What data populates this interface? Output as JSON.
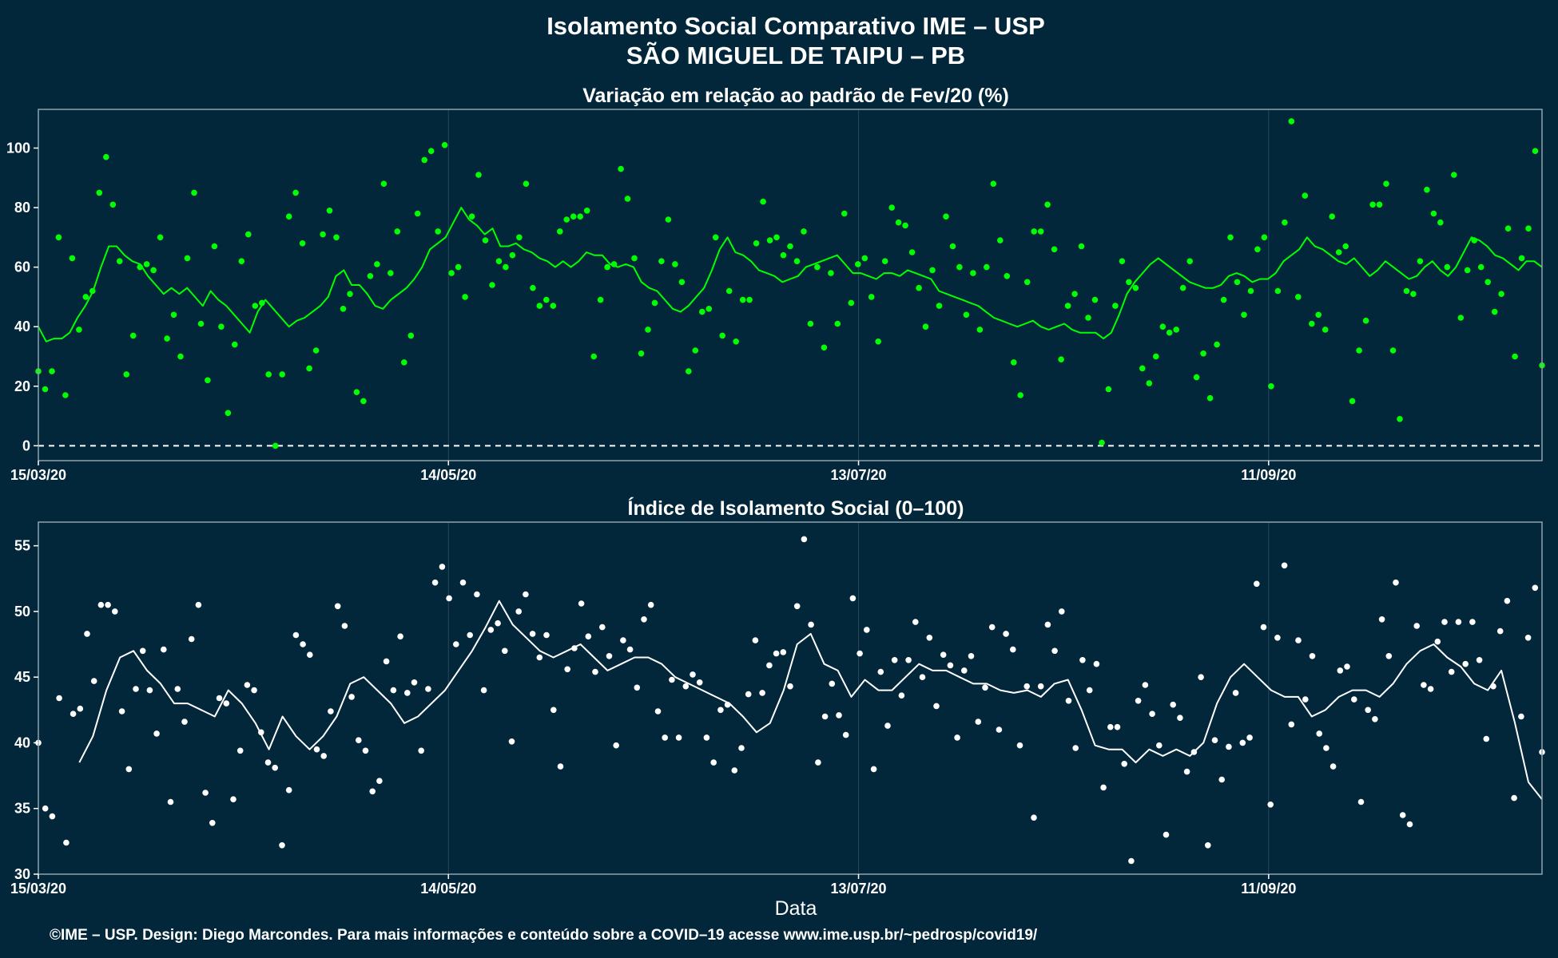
{
  "header": {
    "title": "Isolamento Social Comparativo IME – USP",
    "subtitle": "SÃO MIGUEL DE TAIPU – PB"
  },
  "x_axis": {
    "label": "Data",
    "start": "2020-03-15",
    "end": "2020-10-21",
    "tick_dates": [
      "2020-03-15",
      "2020-05-14",
      "2020-07-13",
      "2020-09-11"
    ],
    "tick_labels": [
      "15/03/20",
      "14/05/20",
      "13/07/20",
      "11/09/20"
    ]
  },
  "footer": {
    "credit": "©IME – USP. Design: Diego Marcondes. Para mais informações e conteúdo sobre a COVID–19 acesse www.ime.usp.br/~pedrosp/covid19/"
  },
  "colors": {
    "background": "#02263a",
    "variation_series": "#00ff00",
    "index_series": "#ffffff",
    "panel_border": "#8fa3ad",
    "grid": "#29465a"
  },
  "chart_data": [
    {
      "type": "scatter",
      "title": "Variação em relação ao padrão de Fev/20 (%)",
      "xlabel": "",
      "ylabel": "",
      "ylim": [
        -5,
        113
      ],
      "yticks": [
        0,
        20,
        40,
        60,
        80,
        100
      ],
      "reference_line": {
        "y": 0,
        "style": "dashed"
      },
      "grid": true,
      "series": [
        {
          "kind": "points",
          "values": [
            25,
            19,
            25,
            70,
            17,
            63,
            39,
            50,
            52,
            85,
            97,
            81,
            62,
            24,
            37,
            60,
            61,
            59,
            70,
            36,
            44,
            30,
            63,
            85,
            41,
            22,
            67,
            40,
            11,
            34,
            62,
            71,
            47,
            48,
            24,
            0,
            24,
            77,
            85,
            68,
            26,
            32,
            71,
            79,
            70,
            46,
            51,
            18,
            15,
            57,
            61,
            88,
            58,
            72,
            28,
            37,
            78,
            96,
            99,
            72,
            101,
            58,
            60,
            50,
            77,
            91,
            69,
            54,
            62,
            60,
            64,
            70,
            88,
            53,
            47,
            49,
            47,
            72,
            76,
            77,
            77,
            79,
            30,
            49,
            60,
            61,
            93,
            83,
            63,
            31,
            39,
            48,
            62,
            76,
            61,
            55,
            25,
            32,
            45,
            46,
            70,
            37,
            52,
            35,
            49,
            49,
            68,
            82,
            69,
            70,
            64,
            67,
            62,
            72,
            41,
            60,
            33,
            58,
            41,
            78,
            48,
            61,
            63,
            50,
            35,
            62,
            80,
            75,
            74,
            65,
            53,
            40,
            59,
            47,
            77,
            67,
            60,
            44,
            58,
            39,
            60,
            88,
            69,
            57,
            28,
            17,
            55,
            72,
            72,
            81,
            66,
            29,
            47,
            51,
            67,
            43,
            49,
            1,
            19,
            47,
            62,
            55,
            53,
            26,
            21,
            30,
            40,
            38,
            39,
            53,
            62,
            23,
            31,
            16,
            34,
            49,
            70,
            55,
            44,
            52,
            66,
            70,
            20,
            52,
            75,
            109,
            50,
            84,
            41,
            44,
            39,
            77,
            65,
            67,
            15,
            32,
            42,
            81,
            81,
            88,
            32,
            9,
            52,
            51,
            62,
            86,
            78,
            75,
            60,
            91,
            43,
            59,
            69,
            60,
            55,
            45,
            51,
            73,
            30,
            63,
            73,
            99,
            27
          ]
        },
        {
          "kind": "line",
          "name": "",
          "values": [
            40,
            35,
            36,
            36,
            38,
            43,
            47,
            52,
            60,
            67,
            67,
            64,
            62,
            61,
            57,
            54,
            51,
            53,
            51,
            53,
            50,
            47,
            52,
            49,
            47,
            44,
            41,
            38,
            45,
            49,
            46,
            43,
            40,
            42,
            43,
            45,
            47,
            50,
            57,
            59,
            54,
            54,
            51,
            47,
            46,
            49,
            51,
            53,
            56,
            60,
            66,
            68,
            70,
            75,
            80,
            76,
            74,
            71,
            73,
            67,
            67,
            68,
            66,
            65,
            63,
            62,
            60,
            62,
            60,
            62,
            65,
            64,
            64,
            61,
            60,
            61,
            60,
            55,
            53,
            52,
            49,
            46,
            45,
            47,
            50,
            53,
            59,
            66,
            70,
            65,
            64,
            62,
            59,
            58,
            57,
            55,
            56,
            57,
            60,
            61,
            62,
            63,
            64,
            61,
            58,
            58,
            57,
            56,
            58,
            58,
            57,
            59,
            58,
            57,
            56,
            52,
            51,
            50,
            49,
            48,
            47,
            45,
            43,
            42,
            41,
            40,
            41,
            42,
            40,
            39,
            40,
            41,
            39,
            38,
            38,
            38,
            36,
            38,
            44,
            51,
            55,
            58,
            61,
            63,
            61,
            59,
            57,
            55,
            54,
            53,
            53,
            54,
            57,
            58,
            57,
            55,
            56,
            56,
            58,
            62,
            64,
            66,
            70,
            67,
            66,
            64,
            62,
            61,
            63,
            60,
            57,
            59,
            62,
            60,
            58,
            56,
            57,
            60,
            62,
            59,
            57,
            60,
            65,
            70,
            69,
            67,
            64,
            63,
            61,
            59,
            62,
            62,
            60
          ]
        }
      ]
    },
    {
      "type": "scatter",
      "title": "Índice de Isolamento Social (0–100)",
      "xlabel": "Data",
      "ylabel": "",
      "ylim": [
        30,
        56.8
      ],
      "yticks": [
        30,
        35,
        40,
        45,
        50,
        55
      ],
      "grid": true,
      "series": [
        {
          "kind": "points",
          "values": [
            40,
            35,
            34.4,
            43.4,
            32.4,
            42.2,
            42.6,
            48.3,
            44.7,
            50.5,
            50.5,
            50,
            42.4,
            38,
            44.1,
            47,
            44,
            40.7,
            47.1,
            35.5,
            44.1,
            41.6,
            47.9,
            50.5,
            36.2,
            33.9,
            43.4,
            43,
            35.7,
            39.4,
            44.4,
            44,
            40.8,
            38.5,
            38.1,
            32.2,
            36.4,
            48.2,
            47.5,
            46.7,
            39.5,
            39,
            42.4,
            50.4,
            48.9,
            43.5,
            40.2,
            39.4,
            36.3,
            37.1,
            46.2,
            44,
            48.1,
            43.8,
            44.6,
            39.4,
            44.1,
            52.2,
            53.4,
            51,
            47.5,
            52.2,
            48.2,
            51.3,
            44,
            48.6,
            49.1,
            47,
            40.1,
            50,
            51.3,
            48.3,
            46.5,
            48.2,
            42.5,
            38.2,
            45.6,
            47.2,
            50.6,
            48.1,
            45.4,
            48.8,
            46.6,
            39.8,
            47.8,
            47.1,
            44.2,
            49.4,
            50.5,
            42.4,
            40.4,
            44.8,
            40.4,
            44.3,
            45.2,
            44.6,
            40.4,
            38.5,
            42.5,
            42.9,
            37.9,
            39.6,
            43.7,
            47.8,
            43.8,
            45.9,
            46.8,
            46.9,
            44.3,
            50.4,
            55.5,
            49,
            38.5,
            42,
            44.5,
            42.1,
            40.6,
            51,
            46.8,
            48.6,
            38,
            45.4,
            41.3,
            46.3,
            43.6,
            46.3,
            49.2,
            45,
            48,
            42.8,
            46.7,
            45.9,
            40.4,
            45.5,
            46.6,
            41.6,
            44.2,
            48.8,
            41,
            48.3,
            47.1,
            39.8,
            44.3,
            34.3,
            44.3,
            49,
            47,
            50,
            43.2,
            39.6,
            46.3,
            44,
            46,
            36.6,
            41.2,
            41.2,
            38.4,
            31,
            43.2,
            44.4,
            42.2,
            39.8,
            33,
            42.9,
            41.9,
            37.8,
            39.3,
            45,
            32.2,
            40.2,
            37.2,
            39.7,
            43.8,
            40,
            40.4,
            52.1,
            48.8,
            35.3,
            48,
            53.5,
            41.4,
            47.8,
            43.3,
            46.6,
            40.7,
            39.6,
            38.2,
            45.5,
            45.8,
            43.3,
            35.5,
            42.5,
            41.8,
            49.4,
            46.6,
            52.2,
            34.5,
            33.8,
            48.9,
            44.4,
            44.1,
            47.7,
            49.2,
            45.4,
            49.2,
            46,
            49.2,
            46.3,
            40.3,
            44.3,
            48.5,
            50.8,
            35.8,
            42,
            48,
            51.8,
            39.3
          ]
        },
        {
          "kind": "line",
          "name": "",
          "values": [
            38.5,
            40.5,
            44,
            46.5,
            47,
            45.5,
            44.5,
            43,
            43,
            42.5,
            42,
            44,
            43,
            41.5,
            39.5,
            42,
            40.5,
            39.5,
            40.5,
            42,
            44.5,
            45,
            44,
            43,
            41.5,
            42,
            43,
            44,
            45.5,
            47,
            48.8,
            50.8,
            49,
            48,
            47,
            46.5,
            47,
            47.5,
            46.5,
            45.5,
            46,
            46.5,
            46.5,
            46,
            45,
            44.5,
            44,
            43.5,
            43,
            42,
            40.8,
            41.5,
            44,
            47.5,
            48.3,
            46,
            45.5,
            43.5,
            44.8,
            44,
            44,
            45,
            46,
            45.5,
            45.5,
            45,
            44.5,
            44.5,
            44,
            43.8,
            44,
            43.5,
            44.5,
            44.8,
            42.5,
            39.8,
            39.5,
            39.5,
            38.5,
            39.5,
            39,
            39.5,
            39,
            40,
            43,
            45,
            46,
            45,
            44,
            43.5,
            43.5,
            42,
            42.5,
            43.5,
            44,
            44,
            43.5,
            44.5,
            46,
            47,
            47.5,
            46.5,
            45.8,
            44.5,
            44,
            45.5,
            41.5,
            37,
            35.7
          ]
        }
      ]
    }
  ]
}
